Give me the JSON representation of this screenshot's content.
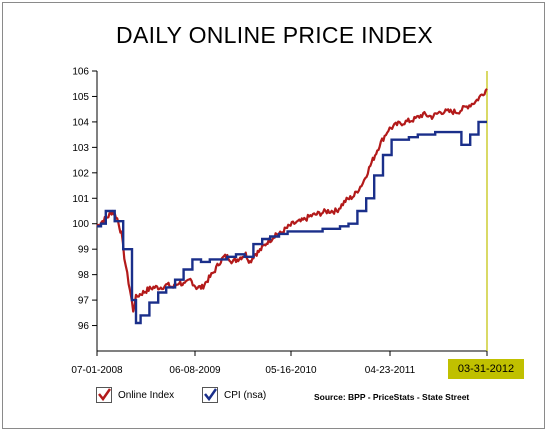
{
  "chart_data": {
    "type": "line",
    "title": "DAILY ONLINE PRICE INDEX",
    "ylim": [
      95,
      106
    ],
    "y_ticks": [
      96,
      97,
      98,
      99,
      100,
      101,
      102,
      103,
      104,
      105,
      106
    ],
    "x_tick_labels": [
      "07-01-2008",
      "06-08-2009",
      "05-16-2010",
      "04-23-2011"
    ],
    "x_end_label": "03-31-2012",
    "grid": false,
    "legend_position": "bottom-left",
    "source": "Source: BPP - PriceStats - State Street",
    "series": [
      {
        "name": "Online Index",
        "color": "#b31a1a",
        "x": [
          "2008-07-01",
          "2008-07-20",
          "2008-08-10",
          "2008-08-25",
          "2008-09-10",
          "2008-09-25",
          "2008-10-05",
          "2008-10-15",
          "2008-10-25",
          "2008-11-05",
          "2008-11-15",
          "2008-11-25",
          "2008-12-10",
          "2008-12-25",
          "2009-01-15",
          "2009-02-10",
          "2009-03-05",
          "2009-03-25",
          "2009-04-15",
          "2009-05-05",
          "2009-05-25",
          "2009-06-15",
          "2009-07-05",
          "2009-07-25",
          "2009-08-15",
          "2009-09-05",
          "2009-09-20",
          "2009-10-05",
          "2009-10-20",
          "2009-11-05",
          "2009-11-20",
          "2009-12-05",
          "2009-12-20",
          "2010-01-05",
          "2010-01-20",
          "2010-02-05",
          "2010-02-20",
          "2010-03-05",
          "2010-03-20",
          "2010-04-05",
          "2010-04-25",
          "2010-05-20",
          "2010-06-20",
          "2010-07-20",
          "2010-08-20",
          "2010-09-20",
          "2010-10-20",
          "2010-11-20",
          "2010-12-20",
          "2011-01-20",
          "2011-02-20",
          "2011-03-20",
          "2011-04-20",
          "2011-05-20",
          "2011-06-20",
          "2011-07-20",
          "2011-08-20",
          "2011-09-20",
          "2011-10-20",
          "2011-11-20",
          "2011-12-20",
          "2012-01-20",
          "2012-02-20",
          "2012-03-31"
        ],
        "values": [
          99.9,
          100.1,
          100.3,
          100.5,
          100.2,
          99.6,
          98.7,
          98.0,
          97.4,
          96.6,
          97.1,
          97.2,
          97.3,
          97.4,
          97.5,
          97.5,
          97.6,
          97.5,
          97.7,
          97.6,
          97.8,
          97.5,
          97.5,
          97.8,
          98.1,
          98.5,
          98.7,
          98.7,
          98.5,
          98.6,
          98.7,
          98.8,
          98.5,
          98.8,
          98.9,
          99.1,
          99.3,
          99.4,
          99.6,
          99.6,
          99.8,
          100.0,
          100.1,
          100.3,
          100.4,
          100.5,
          100.5,
          100.9,
          101.1,
          101.6,
          102.4,
          103.1,
          103.7,
          103.9,
          104.0,
          104.1,
          104.3,
          104.2,
          104.4,
          104.4,
          104.4,
          104.6,
          104.8,
          105.3
        ]
      },
      {
        "name": "CPI (nsa)",
        "color": "#1a2f8a",
        "step_x": [
          "2008-07-01",
          "2008-07-15",
          "2008-08-01",
          "2008-09-01",
          "2008-10-01",
          "2008-11-01",
          "2008-11-15",
          "2008-12-01",
          "2009-01-01",
          "2009-02-01",
          "2009-03-01",
          "2009-04-01",
          "2009-05-01",
          "2009-06-01",
          "2009-07-01",
          "2009-08-01",
          "2009-09-01",
          "2009-10-01",
          "2009-11-01",
          "2009-12-01",
          "2010-01-01",
          "2010-02-01",
          "2010-03-01",
          "2010-04-01",
          "2010-05-01",
          "2010-06-01",
          "2010-07-01",
          "2010-08-01",
          "2010-09-01",
          "2010-10-01",
          "2010-11-01",
          "2010-12-01",
          "2011-01-01",
          "2011-02-01",
          "2011-03-01",
          "2011-04-01",
          "2011-05-01",
          "2011-06-01",
          "2011-07-01",
          "2011-08-01",
          "2011-09-01",
          "2011-10-01",
          "2011-11-01",
          "2011-12-01",
          "2012-01-01",
          "2012-02-01",
          "2012-03-01"
        ],
        "values": [
          99.9,
          100.0,
          100.5,
          100.1,
          99.0,
          97.0,
          96.1,
          96.4,
          96.9,
          97.3,
          97.5,
          97.8,
          98.2,
          98.6,
          98.5,
          98.6,
          98.6,
          98.7,
          98.8,
          98.7,
          99.2,
          99.4,
          99.5,
          99.6,
          99.7,
          99.7,
          99.7,
          99.7,
          99.8,
          99.8,
          99.9,
          100.0,
          100.5,
          101.0,
          101.9,
          102.7,
          103.3,
          103.3,
          103.4,
          103.5,
          103.5,
          103.6,
          103.6,
          103.6,
          103.1,
          103.5,
          104.0
        ]
      }
    ]
  }
}
